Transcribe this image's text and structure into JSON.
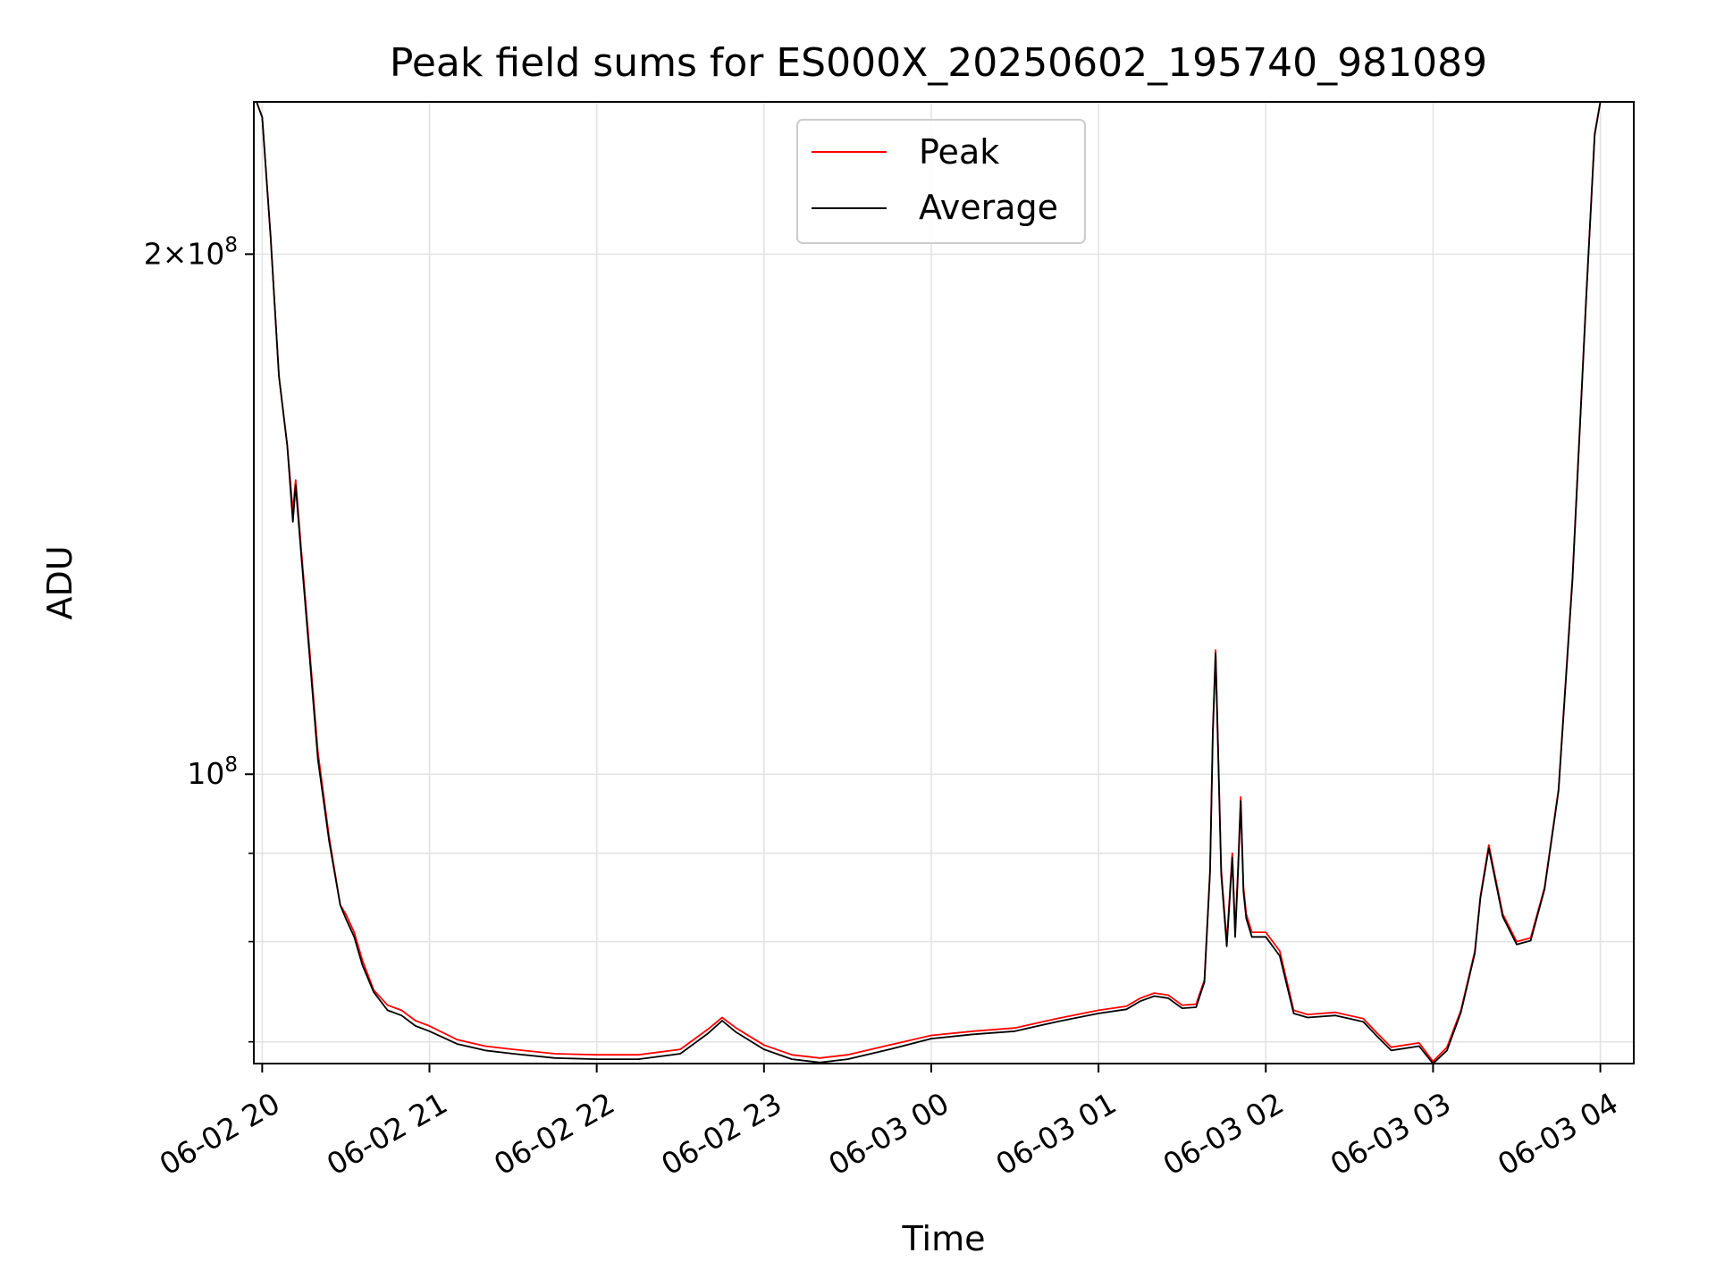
{
  "chart_data": {
    "type": "line",
    "title": "Peak field sums for ES000X_20250602_195740_981089",
    "xlabel": "Time",
    "ylabel": "ADU",
    "y_scale": "log",
    "grid": true,
    "legend_placement": "upper-center",
    "xlim": [
      "2025-06-02T19:57",
      "2025-06-03T04:12"
    ],
    "ylim": [
      68000000,
      245000000
    ],
    "x_ticks": [
      "2025-06-02T20:00",
      "2025-06-02T21:00",
      "2025-06-02T22:00",
      "2025-06-02T23:00",
      "2025-06-03T00:00",
      "2025-06-03T01:00",
      "2025-06-03T02:00",
      "2025-06-03T03:00",
      "2025-06-03T04:00"
    ],
    "x_tick_labels": [
      "06-02 20",
      "06-02 21",
      "06-02 22",
      "06-02 23",
      "06-03 00",
      "06-03 01",
      "06-03 02",
      "06-03 03",
      "06-03 04"
    ],
    "y_major_ticks": [
      100000000,
      200000000
    ],
    "y_major_labels": [
      {
        "mantissa": "",
        "exp": "8"
      },
      {
        "mantissa": "2",
        "exp": "8"
      }
    ],
    "y_minor_ticks": [
      70000000,
      80000000,
      90000000
    ],
    "series": [
      {
        "name": "Peak",
        "color": "#ff0000",
        "x": [
          "2025-06-02T19:58",
          "2025-06-02T20:00",
          "2025-06-02T20:03",
          "2025-06-02T20:06",
          "2025-06-02T20:09",
          "2025-06-02T20:11",
          "2025-06-02T20:12",
          "2025-06-02T20:14",
          "2025-06-02T20:17",
          "2025-06-02T20:20",
          "2025-06-02T20:24",
          "2025-06-02T20:28",
          "2025-06-02T20:30",
          "2025-06-02T20:33",
          "2025-06-02T20:36",
          "2025-06-02T20:40",
          "2025-06-02T20:45",
          "2025-06-02T20:50",
          "2025-06-02T20:55",
          "2025-06-02T21:00",
          "2025-06-02T21:10",
          "2025-06-02T21:20",
          "2025-06-02T21:30",
          "2025-06-02T21:45",
          "2025-06-02T22:00",
          "2025-06-02T22:15",
          "2025-06-02T22:30",
          "2025-06-02T22:40",
          "2025-06-02T22:45",
          "2025-06-02T22:50",
          "2025-06-02T23:00",
          "2025-06-02T23:10",
          "2025-06-02T23:20",
          "2025-06-02T23:30",
          "2025-06-02T23:45",
          "2025-06-03T00:00",
          "2025-06-03T00:15",
          "2025-06-03T00:30",
          "2025-06-03T00:45",
          "2025-06-03T01:00",
          "2025-06-03T01:10",
          "2025-06-03T01:15",
          "2025-06-03T01:20",
          "2025-06-03T01:25",
          "2025-06-03T01:30",
          "2025-06-03T01:35",
          "2025-06-03T01:38",
          "2025-06-03T01:40",
          "2025-06-03T01:41",
          "2025-06-03T01:42",
          "2025-06-03T01:44",
          "2025-06-03T01:46",
          "2025-06-03T01:48",
          "2025-06-03T01:49",
          "2025-06-03T01:50",
          "2025-06-03T01:51",
          "2025-06-03T01:52",
          "2025-06-03T01:53",
          "2025-06-03T01:55",
          "2025-06-03T02:00",
          "2025-06-03T02:05",
          "2025-06-03T02:10",
          "2025-06-03T02:15",
          "2025-06-03T02:25",
          "2025-06-03T02:35",
          "2025-06-03T02:40",
          "2025-06-03T02:45",
          "2025-06-03T02:55",
          "2025-06-03T03:00",
          "2025-06-03T03:05",
          "2025-06-03T03:10",
          "2025-06-03T03:15",
          "2025-06-03T03:17",
          "2025-06-03T03:20",
          "2025-06-03T03:25",
          "2025-06-03T03:30",
          "2025-06-03T03:35",
          "2025-06-03T03:40",
          "2025-06-03T03:45",
          "2025-06-03T03:50",
          "2025-06-03T03:55",
          "2025-06-03T03:58",
          "2025-06-03T04:00"
        ],
        "values": [
          245000000,
          240000000,
          205000000,
          170000000,
          155000000,
          142000000,
          148000000,
          135000000,
          118000000,
          103000000,
          92000000,
          84000000,
          83000000,
          81000000,
          78000000,
          75000000,
          73500000,
          73000000,
          72000000,
          71500000,
          70200000,
          69600000,
          69300000,
          68900000,
          68800000,
          68800000,
          69300000,
          71200000,
          72300000,
          71300000,
          69700000,
          68800000,
          68500000,
          68800000,
          69700000,
          70600000,
          71000000,
          71300000,
          72200000,
          73000000,
          73400000,
          74200000,
          74700000,
          74500000,
          73500000,
          73600000,
          76000000,
          88000000,
          106000000,
          118000000,
          88000000,
          80000000,
          90000000,
          81000000,
          88000000,
          97000000,
          86000000,
          83000000,
          81000000,
          81000000,
          79000000,
          73000000,
          72600000,
          72800000,
          72200000,
          70800000,
          69500000,
          69900000,
          68200000,
          69500000,
          73000000,
          79000000,
          85000000,
          91000000,
          83000000,
          80000000,
          80400000,
          86000000,
          98000000,
          130000000,
          190000000,
          235000000,
          245000000
        ]
      },
      {
        "name": "Average",
        "color": "#000000",
        "x": [
          "2025-06-02T19:58",
          "2025-06-02T20:00",
          "2025-06-02T20:03",
          "2025-06-02T20:06",
          "2025-06-02T20:09",
          "2025-06-02T20:11",
          "2025-06-02T20:12",
          "2025-06-02T20:14",
          "2025-06-02T20:17",
          "2025-06-02T20:20",
          "2025-06-02T20:24",
          "2025-06-02T20:28",
          "2025-06-02T20:30",
          "2025-06-02T20:33",
          "2025-06-02T20:36",
          "2025-06-02T20:40",
          "2025-06-02T20:45",
          "2025-06-02T20:50",
          "2025-06-02T20:55",
          "2025-06-02T21:00",
          "2025-06-02T21:10",
          "2025-06-02T21:20",
          "2025-06-02T21:30",
          "2025-06-02T21:45",
          "2025-06-02T22:00",
          "2025-06-02T22:15",
          "2025-06-02T22:30",
          "2025-06-02T22:40",
          "2025-06-02T22:45",
          "2025-06-02T22:50",
          "2025-06-02T23:00",
          "2025-06-02T23:10",
          "2025-06-02T23:20",
          "2025-06-02T23:30",
          "2025-06-02T23:45",
          "2025-06-03T00:00",
          "2025-06-03T00:15",
          "2025-06-03T00:30",
          "2025-06-03T00:45",
          "2025-06-03T01:00",
          "2025-06-03T01:10",
          "2025-06-03T01:15",
          "2025-06-03T01:20",
          "2025-06-03T01:25",
          "2025-06-03T01:30",
          "2025-06-03T01:35",
          "2025-06-03T01:38",
          "2025-06-03T01:40",
          "2025-06-03T01:41",
          "2025-06-03T01:42",
          "2025-06-03T01:44",
          "2025-06-03T01:46",
          "2025-06-03T01:48",
          "2025-06-03T01:49",
          "2025-06-03T01:50",
          "2025-06-03T01:51",
          "2025-06-03T01:52",
          "2025-06-03T01:53",
          "2025-06-03T01:55",
          "2025-06-03T02:00",
          "2025-06-03T02:05",
          "2025-06-03T02:10",
          "2025-06-03T02:15",
          "2025-06-03T02:25",
          "2025-06-03T02:35",
          "2025-06-03T02:40",
          "2025-06-03T02:45",
          "2025-06-03T02:55",
          "2025-06-03T03:00",
          "2025-06-03T03:05",
          "2025-06-03T03:10",
          "2025-06-03T03:15",
          "2025-06-03T03:17",
          "2025-06-03T03:20",
          "2025-06-03T03:25",
          "2025-06-03T03:30",
          "2025-06-03T03:35",
          "2025-06-03T03:40",
          "2025-06-03T03:45",
          "2025-06-03T03:50",
          "2025-06-03T03:55",
          "2025-06-03T03:58",
          "2025-06-03T04:00"
        ],
        "values": [
          245000000,
          240000000,
          205000000,
          170000000,
          155000000,
          140000000,
          147000000,
          134000000,
          117000000,
          102000000,
          91500000,
          84000000,
          82500000,
          80500000,
          77500000,
          74800000,
          73000000,
          72500000,
          71500000,
          71000000,
          69800000,
          69200000,
          68900000,
          68500000,
          68400000,
          68400000,
          68900000,
          70800000,
          72000000,
          70900000,
          69300000,
          68400000,
          68100000,
          68400000,
          69300000,
          70300000,
          70700000,
          71000000,
          71900000,
          72700000,
          73100000,
          73900000,
          74400000,
          74200000,
          73200000,
          73300000,
          75800000,
          87800000,
          105500000,
          117500000,
          87500000,
          79500000,
          89500000,
          80500000,
          87500000,
          96500000,
          85500000,
          82500000,
          80500000,
          80500000,
          78500000,
          72700000,
          72300000,
          72500000,
          71900000,
          70500000,
          69200000,
          69600000,
          68000000,
          69200000,
          72800000,
          78800000,
          84800000,
          90600000,
          82700000,
          79700000,
          80100000,
          85800000,
          97800000,
          129500000,
          189500000,
          234500000,
          245000000
        ]
      }
    ]
  }
}
